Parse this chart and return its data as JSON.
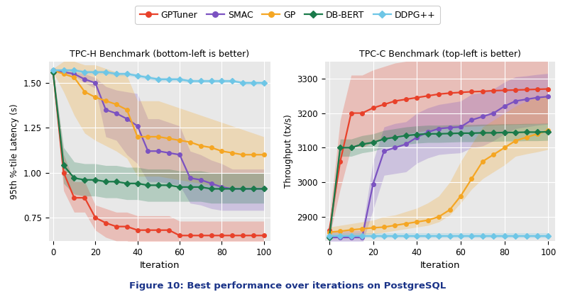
{
  "colors": {
    "GPTuner": "#e8412a",
    "SMAC": "#7b52c1",
    "GP": "#f5a623",
    "DB-BERT": "#1a7a4a",
    "DDPG++": "#6ec6e6"
  },
  "markers": {
    "GPTuner": "o",
    "SMAC": "o",
    "GP": "o",
    "DB-BERT": "D",
    "DDPG++": "D"
  },
  "left_title": "TPC-H Benchmark (bottom-left is better)",
  "right_title": "TPC-C Benchmark (top-left is better)",
  "left_ylabel": "95th %-tile Latency (s)",
  "right_ylabel": "Throughput (tx/s)",
  "xlabel": "Iteration",
  "caption": "Figure 10: Best performance over iterations on PostgreSQL",
  "left": {
    "x": [
      0,
      5,
      10,
      15,
      20,
      25,
      30,
      35,
      40,
      45,
      50,
      55,
      60,
      65,
      70,
      75,
      80,
      85,
      90,
      95,
      100
    ],
    "GPTuner_y": [
      1.56,
      1.0,
      0.86,
      0.86,
      0.75,
      0.72,
      0.7,
      0.7,
      0.68,
      0.68,
      0.68,
      0.68,
      0.65,
      0.65,
      0.65,
      0.65,
      0.65,
      0.65,
      0.65,
      0.65,
      0.65
    ],
    "GPTuner_lo": [
      1.54,
      0.9,
      0.78,
      0.78,
      0.68,
      0.64,
      0.62,
      0.62,
      0.6,
      0.6,
      0.6,
      0.6,
      0.58,
      0.58,
      0.58,
      0.58,
      0.58,
      0.58,
      0.58,
      0.58,
      0.58
    ],
    "GPTuner_hi": [
      1.58,
      1.1,
      0.95,
      0.95,
      0.82,
      0.8,
      0.78,
      0.78,
      0.76,
      0.76,
      0.76,
      0.76,
      0.73,
      0.73,
      0.73,
      0.73,
      0.73,
      0.73,
      0.73,
      0.73,
      0.73
    ],
    "SMAC_y": [
      1.57,
      1.56,
      1.55,
      1.52,
      1.5,
      1.35,
      1.33,
      1.3,
      1.26,
      1.12,
      1.12,
      1.11,
      1.1,
      0.97,
      0.96,
      0.94,
      0.92,
      0.91,
      0.91,
      0.91,
      0.91
    ],
    "SMAC_lo": [
      1.56,
      1.55,
      1.54,
      1.5,
      1.47,
      1.2,
      1.18,
      1.1,
      1.05,
      0.95,
      0.95,
      0.94,
      0.93,
      0.83,
      0.82,
      0.8,
      0.79,
      0.79,
      0.79,
      0.79,
      0.79
    ],
    "SMAC_hi": [
      1.58,
      1.57,
      1.56,
      1.55,
      1.53,
      1.48,
      1.46,
      1.45,
      1.44,
      1.3,
      1.3,
      1.28,
      1.26,
      1.12,
      1.1,
      1.07,
      1.05,
      1.02,
      1.02,
      1.02,
      1.02
    ],
    "GP_y": [
      1.57,
      1.55,
      1.53,
      1.45,
      1.42,
      1.4,
      1.38,
      1.35,
      1.2,
      1.2,
      1.2,
      1.19,
      1.18,
      1.17,
      1.15,
      1.14,
      1.12,
      1.11,
      1.1,
      1.1,
      1.1
    ],
    "GP_lo": [
      1.56,
      1.45,
      1.32,
      1.22,
      1.18,
      1.15,
      1.12,
      1.08,
      0.98,
      0.98,
      0.98,
      0.97,
      0.96,
      0.95,
      0.94,
      0.93,
      0.92,
      0.92,
      0.92,
      0.92,
      0.92
    ],
    "GP_hi": [
      1.58,
      1.62,
      1.62,
      1.6,
      1.6,
      1.58,
      1.56,
      1.54,
      1.4,
      1.4,
      1.4,
      1.38,
      1.36,
      1.34,
      1.32,
      1.3,
      1.28,
      1.26,
      1.24,
      1.22,
      1.2
    ],
    "DBBERT_y": [
      1.56,
      1.04,
      0.97,
      0.96,
      0.96,
      0.95,
      0.95,
      0.94,
      0.94,
      0.93,
      0.93,
      0.93,
      0.92,
      0.92,
      0.92,
      0.91,
      0.91,
      0.91,
      0.91,
      0.91,
      0.91
    ],
    "DBBERT_lo": [
      1.55,
      0.94,
      0.88,
      0.87,
      0.87,
      0.86,
      0.86,
      0.85,
      0.85,
      0.84,
      0.84,
      0.84,
      0.84,
      0.84,
      0.84,
      0.83,
      0.83,
      0.83,
      0.83,
      0.83,
      0.83
    ],
    "DBBERT_hi": [
      1.57,
      1.14,
      1.06,
      1.05,
      1.05,
      1.04,
      1.04,
      1.03,
      1.03,
      1.02,
      1.02,
      1.02,
      1.01,
      1.01,
      1.01,
      1.0,
      1.0,
      1.0,
      1.0,
      1.0,
      1.0
    ],
    "DDPG_y": [
      1.57,
      1.57,
      1.57,
      1.56,
      1.56,
      1.56,
      1.55,
      1.55,
      1.54,
      1.53,
      1.52,
      1.52,
      1.52,
      1.51,
      1.51,
      1.51,
      1.51,
      1.51,
      1.5,
      1.5,
      1.5
    ],
    "DDPG_lo": [
      1.56,
      1.56,
      1.56,
      1.55,
      1.55,
      1.55,
      1.54,
      1.54,
      1.53,
      1.52,
      1.51,
      1.51,
      1.51,
      1.5,
      1.5,
      1.5,
      1.5,
      1.5,
      1.49,
      1.49,
      1.49
    ],
    "DDPG_hi": [
      1.58,
      1.58,
      1.58,
      1.57,
      1.57,
      1.57,
      1.56,
      1.56,
      1.55,
      1.54,
      1.53,
      1.53,
      1.53,
      1.52,
      1.52,
      1.52,
      1.52,
      1.52,
      1.51,
      1.51,
      1.51
    ]
  },
  "right": {
    "x": [
      0,
      5,
      10,
      15,
      20,
      25,
      30,
      35,
      40,
      45,
      50,
      55,
      60,
      65,
      70,
      75,
      80,
      85,
      90,
      95,
      100
    ],
    "GPTuner_y": [
      2860,
      3060,
      3200,
      3200,
      3215,
      3225,
      3235,
      3240,
      3245,
      3250,
      3255,
      3258,
      3260,
      3262,
      3263,
      3265,
      3266,
      3267,
      3268,
      3269,
      3270
    ],
    "GPTuner_lo": [
      2840,
      2980,
      3100,
      3100,
      3115,
      3125,
      3135,
      3140,
      3145,
      3150,
      3155,
      3158,
      3160,
      3162,
      3163,
      3165,
      3166,
      3167,
      3168,
      3169,
      3170
    ],
    "GPTuner_hi": [
      2890,
      3180,
      3310,
      3310,
      3325,
      3335,
      3345,
      3350,
      3355,
      3360,
      3365,
      3368,
      3370,
      3372,
      3373,
      3375,
      3376,
      3377,
      3378,
      3379,
      3380
    ],
    "SMAC_y": [
      2840,
      2840,
      2840,
      2840,
      2995,
      3090,
      3100,
      3110,
      3130,
      3145,
      3155,
      3158,
      3160,
      3180,
      3190,
      3200,
      3220,
      3235,
      3240,
      3245,
      3248
    ],
    "SMAC_lo": [
      2820,
      2820,
      2820,
      2820,
      2920,
      3020,
      3025,
      3030,
      3055,
      3070,
      3080,
      3083,
      3085,
      3100,
      3105,
      3120,
      3140,
      3155,
      3160,
      3165,
      3168
    ],
    "SMAC_hi": [
      2860,
      2860,
      2860,
      2860,
      3060,
      3160,
      3170,
      3175,
      3200,
      3215,
      3225,
      3230,
      3235,
      3255,
      3260,
      3270,
      3290,
      3305,
      3308,
      3312,
      3315
    ],
    "GP_y": [
      2855,
      2858,
      2862,
      2865,
      2868,
      2870,
      2875,
      2880,
      2885,
      2890,
      2900,
      2920,
      2960,
      3010,
      3060,
      3080,
      3100,
      3120,
      3130,
      3140,
      3150
    ],
    "GP_lo": [
      2840,
      2842,
      2845,
      2848,
      2850,
      2855,
      2860,
      2865,
      2870,
      2875,
      2885,
      2905,
      2940,
      2980,
      3010,
      3030,
      3050,
      3075,
      3082,
      3088,
      3095
    ],
    "GP_hi": [
      2870,
      2875,
      2880,
      2885,
      2890,
      2900,
      2905,
      2915,
      2925,
      2940,
      2960,
      3000,
      3060,
      3110,
      3160,
      3180,
      3200,
      3220,
      3235,
      3245,
      3255
    ],
    "DBBERT_y": [
      2840,
      3100,
      3100,
      3110,
      3115,
      3125,
      3130,
      3135,
      3138,
      3140,
      3140,
      3141,
      3142,
      3142,
      3143,
      3143,
      3144,
      3144,
      3145,
      3145,
      3146
    ],
    "DBBERT_lo": [
      2820,
      3075,
      3075,
      3085,
      3090,
      3100,
      3105,
      3110,
      3113,
      3115,
      3115,
      3116,
      3117,
      3117,
      3118,
      3118,
      3119,
      3119,
      3120,
      3120,
      3121
    ],
    "DBBERT_hi": [
      2860,
      3125,
      3125,
      3135,
      3140,
      3150,
      3155,
      3160,
      3163,
      3165,
      3165,
      3166,
      3167,
      3167,
      3168,
      3168,
      3169,
      3169,
      3170,
      3170,
      3171
    ],
    "DDPG_y": [
      2845,
      2845,
      2845,
      2845,
      2845,
      2845,
      2845,
      2845,
      2845,
      2845,
      2845,
      2845,
      2845,
      2845,
      2845,
      2845,
      2845,
      2845,
      2845,
      2845,
      2845
    ],
    "DDPG_lo": [
      2838,
      2838,
      2838,
      2838,
      2838,
      2838,
      2838,
      2838,
      2838,
      2838,
      2838,
      2838,
      2838,
      2838,
      2838,
      2838,
      2838,
      2838,
      2838,
      2838,
      2838
    ],
    "DDPG_hi": [
      2852,
      2852,
      2852,
      2852,
      2852,
      2852,
      2852,
      2852,
      2852,
      2852,
      2852,
      2852,
      2852,
      2852,
      2852,
      2852,
      2852,
      2852,
      2852,
      2852,
      2852
    ]
  },
  "left_ylim": [
    0.62,
    1.62
  ],
  "right_ylim": [
    2830,
    3350
  ],
  "left_yticks": [
    0.75,
    1.0,
    1.25,
    1.5
  ],
  "right_yticks": [
    2900,
    3000,
    3100,
    3200,
    3300
  ],
  "xticks": [
    0,
    20,
    40,
    60,
    80,
    100
  ],
  "bg_color": "#e8e8e8"
}
